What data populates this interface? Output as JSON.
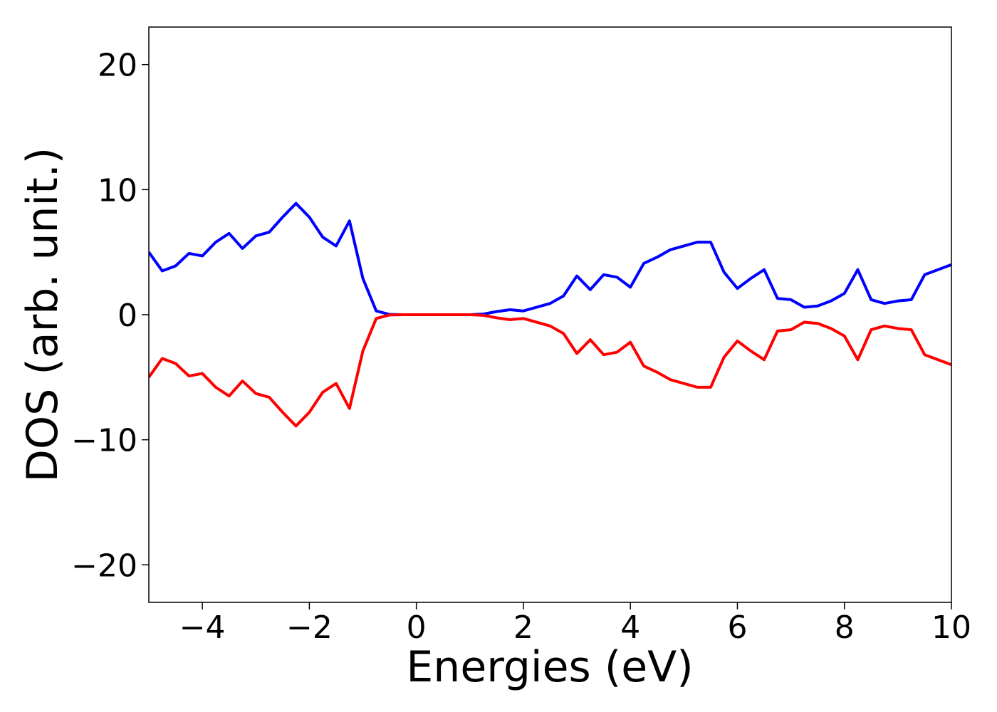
{
  "chart_data": {
    "type": "line",
    "xlabel": "Energies (eV)",
    "ylabel": "DOS (arb. unit.)",
    "x": [
      -5,
      -4.75,
      -4.5,
      -4.25,
      -4,
      -3.75,
      -3.5,
      -3.25,
      -3,
      -2.75,
      -2.5,
      -2.25,
      -2,
      -1.75,
      -1.5,
      -1.25,
      -1,
      -0.75,
      -0.5,
      -0.25,
      0,
      0.25,
      0.5,
      0.75,
      1,
      1.25,
      1.5,
      1.75,
      2,
      2.25,
      2.5,
      2.75,
      3,
      3.25,
      3.5,
      3.75,
      4,
      4.25,
      4.5,
      4.75,
      5,
      5.25,
      5.5,
      5.75,
      6,
      6.25,
      6.5,
      6.75,
      7,
      7.25,
      7.5,
      7.75,
      8,
      8.25,
      8.5,
      8.75,
      9,
      9.25,
      9.5,
      9.75,
      10
    ],
    "series": [
      {
        "color": "#0000ff",
        "values": [
          5.0,
          3.5,
          3.9,
          4.9,
          4.7,
          5.8,
          6.5,
          5.3,
          6.3,
          6.6,
          7.8,
          8.9,
          7.8,
          6.2,
          5.5,
          7.5,
          2.9,
          0.3,
          0.02,
          0,
          0,
          0,
          0,
          0,
          0,
          0.05,
          0.25,
          0.4,
          0.3,
          0.6,
          0.9,
          1.5,
          3.1,
          2.0,
          3.2,
          3.0,
          2.2,
          4.1,
          4.6,
          5.2,
          5.5,
          5.8,
          5.8,
          3.4,
          2.1,
          2.9,
          3.6,
          1.3,
          1.2,
          0.6,
          0.7,
          1.1,
          1.7,
          3.6,
          1.2,
          0.9,
          1.1,
          1.2,
          3.2,
          3.6,
          4.0
        ]
      },
      {
        "color": "#ff0000",
        "values": [
          -5.0,
          -3.5,
          -3.9,
          -4.9,
          -4.7,
          -5.8,
          -6.5,
          -5.3,
          -6.3,
          -6.6,
          -7.8,
          -8.9,
          -7.8,
          -6.2,
          -5.5,
          -7.5,
          -2.9,
          -0.3,
          -0.02,
          0,
          0,
          0,
          0,
          0,
          0,
          -0.05,
          -0.25,
          -0.4,
          -0.3,
          -0.6,
          -0.9,
          -1.5,
          -3.1,
          -2.0,
          -3.2,
          -3.0,
          -2.2,
          -4.1,
          -4.6,
          -5.2,
          -5.5,
          -5.8,
          -5.8,
          -3.4,
          -2.1,
          -2.9,
          -3.6,
          -1.3,
          -1.2,
          -0.6,
          -0.7,
          -1.1,
          -1.7,
          -3.6,
          -1.2,
          -0.9,
          -1.1,
          -1.2,
          -3.2,
          -3.6,
          -4.0
        ]
      }
    ],
    "xlim": [
      -5,
      10
    ],
    "xticks": [
      {
        "value": -4,
        "label": "−4"
      },
      {
        "value": -2,
        "label": "−2"
      },
      0,
      2,
      4,
      6,
      8,
      10
    ],
    "ylim": [
      -23,
      23
    ],
    "yticks": [
      {
        "value": -20,
        "label": "−20"
      },
      {
        "value": -10,
        "label": "−10"
      },
      0,
      10,
      20
    ]
  }
}
